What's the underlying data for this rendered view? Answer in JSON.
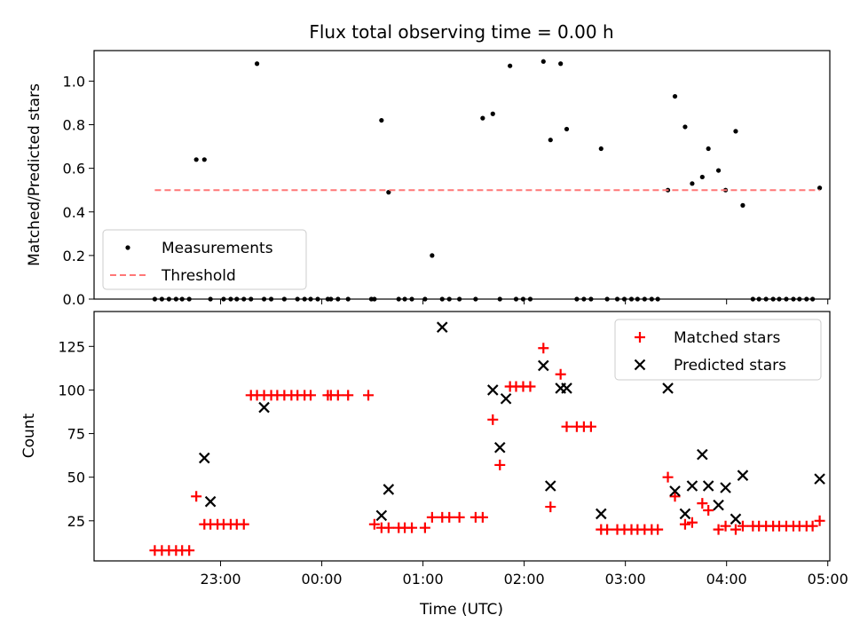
{
  "chart_data": [
    {
      "type": "scatter",
      "title": "Flux total observing time = 0.00 h",
      "xlabel": "",
      "ylabel": "Matched/Predicted stars",
      "ylim": [
        0,
        1.14
      ],
      "xlim": [
        -2.25,
        5.02
      ],
      "x_units": "hours relative to 00:00 UTC",
      "yticks": [
        0.0,
        0.2,
        0.4,
        0.6,
        0.8,
        1.0
      ],
      "ytick_labels": [
        "0.0",
        "0.2",
        "0.4",
        "0.6",
        "0.8",
        "1.0"
      ],
      "legend_position": "bottom-left",
      "series": [
        {
          "name": "Measurements",
          "color": "#000000",
          "marker": "dot",
          "x": [
            -1.65,
            -1.58,
            -1.51,
            -1.44,
            -1.38,
            -1.31,
            -1.24,
            -1.16,
            -1.1,
            -0.97,
            -0.9,
            -0.84,
            -0.77,
            -0.7,
            -0.64,
            -0.57,
            -0.5,
            -0.37,
            -0.24,
            -0.17,
            -0.11,
            -0.04,
            0.06,
            0.09,
            0.16,
            0.26,
            0.49,
            0.52,
            0.59,
            0.66,
            0.76,
            0.82,
            0.89,
            1.02,
            1.09,
            1.19,
            1.26,
            1.36,
            1.52,
            1.59,
            1.69,
            1.76,
            1.86,
            1.92,
            1.99,
            2.06,
            2.19,
            2.26,
            2.36,
            2.42,
            2.52,
            2.59,
            2.66,
            2.76,
            2.82,
            2.92,
            2.99,
            3.06,
            3.12,
            3.19,
            3.26,
            3.32,
            3.42,
            3.49,
            3.59,
            3.66,
            3.76,
            3.82,
            3.92,
            3.99,
            4.09,
            4.16,
            4.26,
            4.32,
            4.39,
            4.46,
            4.52,
            4.59,
            4.66,
            4.72,
            4.79,
            4.85,
            4.92
          ],
          "y": [
            0,
            0,
            0,
            0,
            0,
            0,
            0.64,
            0.64,
            0,
            0,
            0,
            0,
            0,
            0,
            1.08,
            0,
            0,
            0,
            0,
            0,
            0,
            0,
            0,
            0,
            0,
            0,
            0,
            0,
            0.82,
            0.49,
            0,
            0,
            0,
            0,
            0.2,
            0,
            0,
            0,
            0,
            0.83,
            0.85,
            0,
            1.07,
            0,
            0,
            0,
            1.09,
            0.73,
            1.08,
            0.78,
            0,
            0,
            0,
            0.69,
            0,
            0,
            0,
            0,
            0,
            0,
            0,
            0,
            0.5,
            0.93,
            0.79,
            0.53,
            0.56,
            0.69,
            0.59,
            0.5,
            0.77,
            0.43,
            0,
            0,
            0,
            0,
            0,
            0,
            0,
            0,
            0,
            0,
            0.51
          ]
        },
        {
          "name": "Threshold",
          "color": "#ff7777",
          "marker": "dashed-line",
          "x": [
            -1.65,
            4.92
          ],
          "y": [
            0.5,
            0.5
          ]
        }
      ]
    },
    {
      "type": "scatter",
      "title": "",
      "xlabel": "Time (UTC)",
      "ylabel": "Count",
      "ylim": [
        2,
        145
      ],
      "xlim": [
        -2.25,
        5.02
      ],
      "yticks": [
        25,
        50,
        75,
        100,
        125
      ],
      "ytick_labels": [
        "25",
        "50",
        "75",
        "100",
        "125"
      ],
      "xticks": [
        -1,
        0,
        1,
        2,
        3,
        4,
        5
      ],
      "xtick_labels": [
        "23:00",
        "00:00",
        "01:00",
        "02:00",
        "03:00",
        "04:00",
        "05:00"
      ],
      "legend_position": "top-right",
      "series": [
        {
          "name": "Matched stars",
          "color": "#ff0000",
          "marker": "plus",
          "x": [
            -1.65,
            -1.58,
            -1.51,
            -1.44,
            -1.38,
            -1.31,
            -1.24,
            -1.16,
            -1.1,
            -1.03,
            -0.97,
            -0.9,
            -0.84,
            -0.77,
            -0.7,
            -0.64,
            -0.57,
            -0.5,
            -0.44,
            -0.37,
            -0.3,
            -0.24,
            -0.17,
            -0.11,
            0.06,
            0.09,
            0.16,
            0.26,
            0.46,
            0.52,
            0.59,
            0.66,
            0.76,
            0.82,
            0.89,
            1.02,
            1.09,
            1.19,
            1.26,
            1.36,
            1.52,
            1.59,
            1.69,
            1.76,
            1.86,
            1.92,
            1.99,
            2.06,
            2.19,
            2.26,
            2.36,
            2.42,
            2.52,
            2.59,
            2.66,
            2.76,
            2.82,
            2.92,
            2.99,
            3.06,
            3.12,
            3.19,
            3.26,
            3.32,
            3.42,
            3.49,
            3.59,
            3.66,
            3.76,
            3.82,
            3.92,
            3.99,
            4.09,
            4.16,
            4.26,
            4.32,
            4.39,
            4.46,
            4.52,
            4.59,
            4.66,
            4.72,
            4.79,
            4.85,
            4.92
          ],
          "y": [
            8,
            8,
            8,
            8,
            8,
            8,
            39,
            23,
            23,
            23,
            23,
            23,
            23,
            23,
            97,
            97,
            97,
            97,
            97,
            97,
            97,
            97,
            97,
            97,
            97,
            97,
            97,
            97,
            97,
            23,
            21,
            21,
            21,
            21,
            21,
            21,
            27,
            27,
            27,
            27,
            27,
            27,
            83,
            57,
            102,
            102,
            102,
            102,
            124,
            33,
            109,
            79,
            79,
            79,
            79,
            20,
            20,
            20,
            20,
            20,
            20,
            20,
            20,
            20,
            50,
            39,
            23,
            24,
            35,
            31,
            20,
            22,
            20,
            22,
            22,
            22,
            22,
            22,
            22,
            22,
            22,
            22,
            22,
            22,
            25
          ]
        },
        {
          "name": "Predicted stars",
          "color": "#000000",
          "marker": "x",
          "x": [
            -1.16,
            -1.1,
            -0.57,
            0.59,
            0.66,
            1.19,
            1.69,
            1.76,
            1.82,
            2.19,
            2.26,
            2.36,
            2.42,
            2.76,
            3.42,
            3.49,
            3.59,
            3.66,
            3.76,
            3.82,
            3.92,
            3.99,
            4.09,
            4.16,
            4.92
          ],
          "y": [
            61,
            36,
            90,
            28,
            43,
            136,
            100,
            67,
            95,
            114,
            45,
            101,
            101,
            29,
            101,
            42,
            29,
            45,
            63,
            45,
            34,
            44,
            26,
            51,
            49
          ]
        }
      ]
    }
  ]
}
